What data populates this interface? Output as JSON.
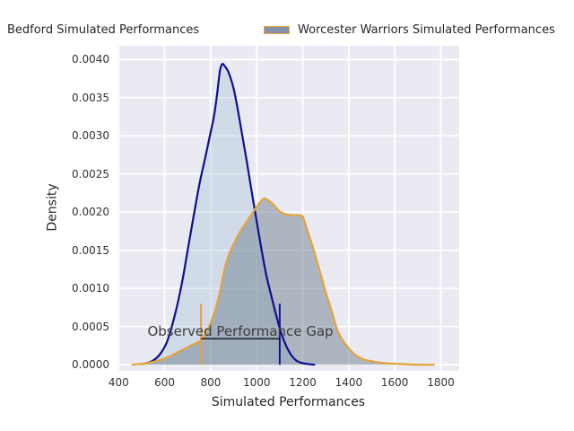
{
  "figure": {
    "background": "#ffffff",
    "plot_background": "#eaeaf2",
    "grid_color": "#ffffff"
  },
  "legend": {
    "items": [
      {
        "label": "Bedford Simulated Performances",
        "swatch": null
      },
      {
        "label": "Worcester Warriors Simulated Performances",
        "swatch_fill": "#8591a6",
        "swatch_border": "#e6a23c"
      }
    ]
  },
  "chart_data": {
    "type": "area",
    "subtype": "kde-density",
    "title": "",
    "xlabel": "Simulated Performances",
    "ylabel": "Density",
    "xlim": [
      395,
      1880
    ],
    "ylim": [
      -8e-05,
      0.00418
    ],
    "x_ticks": [
      400,
      600,
      800,
      1000,
      1200,
      1400,
      1600,
      1800
    ],
    "y_ticks": [
      0.0,
      0.0005,
      0.001,
      0.0015,
      0.002,
      0.0025,
      0.003,
      0.0035,
      0.004
    ],
    "y_tick_decimals": 4,
    "grid": true,
    "legend_position": "top",
    "series": [
      {
        "name": "Bedford Simulated Performances",
        "color": "#0f0f8f",
        "fill": "#9dbcd4",
        "fill_opacity": 0.32,
        "line_width": 2.2,
        "points": [
          [
            500,
            1e-05
          ],
          [
            540,
            4e-05
          ],
          [
            575,
            0.00012
          ],
          [
            610,
            0.0003
          ],
          [
            645,
            0.00066
          ],
          [
            675,
            0.00107
          ],
          [
            700,
            0.0015
          ],
          [
            726,
            0.00195
          ],
          [
            752,
            0.00238
          ],
          [
            776,
            0.00271
          ],
          [
            800,
            0.00305
          ],
          [
            815,
            0.00327
          ],
          [
            828,
            0.00355
          ],
          [
            840,
            0.00385
          ],
          [
            850,
            0.00394
          ],
          [
            862,
            0.00391
          ],
          [
            878,
            0.00383
          ],
          [
            898,
            0.00364
          ],
          [
            915,
            0.00339
          ],
          [
            937,
            0.00301
          ],
          [
            956,
            0.00268
          ],
          [
            976,
            0.00231
          ],
          [
            1002,
            0.00184
          ],
          [
            1022,
            0.00149
          ],
          [
            1042,
            0.00117
          ],
          [
            1062,
            0.00092
          ],
          [
            1082,
            0.00068
          ],
          [
            1102,
            0.00046
          ],
          [
            1122,
            0.00029
          ],
          [
            1145,
            0.00015
          ],
          [
            1170,
            6e-05
          ],
          [
            1200,
            2e-05
          ],
          [
            1250,
            0.0
          ]
        ]
      },
      {
        "name": "Worcester Warriors Simulated Performances",
        "color": "#e6a23c",
        "fill": "#708090",
        "fill_opacity": 0.5,
        "line_width": 2.2,
        "points": [
          [
            460,
            0.0
          ],
          [
            520,
            2e-05
          ],
          [
            580,
            6e-05
          ],
          [
            630,
            0.00012
          ],
          [
            680,
            0.0002
          ],
          [
            720,
            0.00026
          ],
          [
            758,
            0.00032
          ],
          [
            780,
            0.00042
          ],
          [
            800,
            0.00055
          ],
          [
            820,
            0.00072
          ],
          [
            840,
            0.00095
          ],
          [
            860,
            0.00125
          ],
          [
            880,
            0.00145
          ],
          [
            900,
            0.00158
          ],
          [
            920,
            0.0017
          ],
          [
            940,
            0.0018
          ],
          [
            960,
            0.00189
          ],
          [
            980,
            0.00198
          ],
          [
            1000,
            0.00207
          ],
          [
            1018,
            0.00214
          ],
          [
            1034,
            0.00218
          ],
          [
            1052,
            0.00215
          ],
          [
            1070,
            0.00211
          ],
          [
            1090,
            0.00204
          ],
          [
            1110,
            0.00199
          ],
          [
            1130,
            0.00197
          ],
          [
            1155,
            0.00196
          ],
          [
            1180,
            0.00196
          ],
          [
            1200,
            0.00194
          ],
          [
            1220,
            0.00176
          ],
          [
            1246,
            0.00152
          ],
          [
            1272,
            0.00125
          ],
          [
            1298,
            0.00097
          ],
          [
            1324,
            0.00072
          ],
          [
            1350,
            0.00046
          ],
          [
            1376,
            0.00031
          ],
          [
            1402,
            0.00021
          ],
          [
            1428,
            0.00013
          ],
          [
            1465,
            7e-05
          ],
          [
            1510,
            4e-05
          ],
          [
            1560,
            2e-05
          ],
          [
            1620,
            1e-05
          ],
          [
            1700,
            0.0
          ],
          [
            1770,
            0.0
          ]
        ]
      }
    ],
    "vlines": [
      {
        "x": 758,
        "y0": 0,
        "y1": 0.0008,
        "color": "#e6a23c",
        "width": 2
      },
      {
        "x": 1100,
        "y0": 0,
        "y1": 0.0008,
        "color": "#14148f",
        "width": 2
      }
    ],
    "annotation": {
      "text": "Observed Performance Gap",
      "x0": 758,
      "x1": 1100,
      "y": 0.00034,
      "line_color": "#1a1a1a",
      "line_width": 1.5,
      "text_color": "#3d3d3d"
    }
  }
}
